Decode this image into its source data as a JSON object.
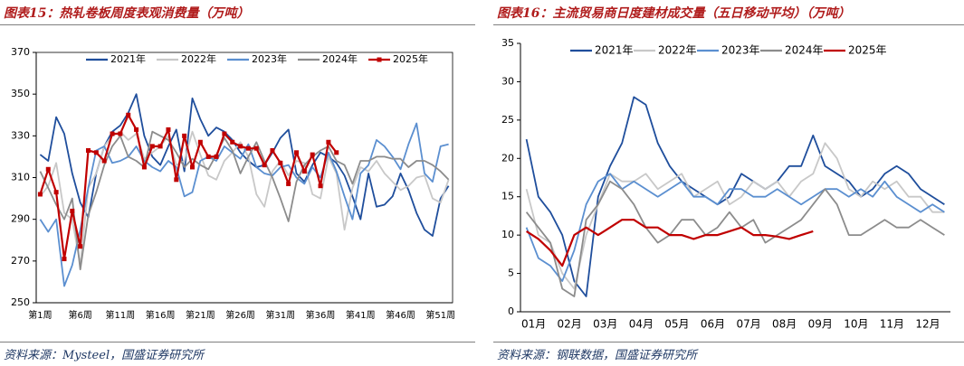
{
  "chart_data": [
    {
      "type": "line",
      "title": "图表15：热轧卷板周度表观消费量（万吨）",
      "source": "资料来源：Mysteel，国盛证券研究所",
      "categories": [
        "第1周",
        null,
        null,
        null,
        null,
        "第6周",
        null,
        null,
        null,
        null,
        "第11周",
        null,
        null,
        null,
        null,
        "第16周",
        null,
        null,
        null,
        null,
        "第21周",
        null,
        null,
        null,
        null,
        "第26周",
        null,
        null,
        null,
        null,
        "第31周",
        null,
        null,
        null,
        null,
        "第36周",
        null,
        null,
        null,
        null,
        "第41周",
        null,
        null,
        null,
        null,
        "第46周",
        null,
        null,
        null,
        null,
        "第51周",
        null
      ],
      "ylim": [
        250,
        370
      ],
      "yticks": [
        250,
        270,
        290,
        310,
        330,
        350,
        370
      ],
      "grid": false,
      "legend": "top",
      "series": [
        {
          "name": "2021年",
          "color": "#1f4e9c",
          "values": [
            321,
            318,
            339,
            331,
            312,
            298,
            291,
            312,
            325,
            332,
            335,
            341,
            350,
            330,
            320,
            316,
            325,
            333,
            313,
            348,
            338,
            330,
            334,
            332,
            328,
            322,
            318,
            315,
            316,
            322,
            329,
            333,
            312,
            308,
            316,
            322,
            320,
            317,
            311,
            301,
            290,
            312,
            296,
            297,
            301,
            312,
            304,
            293,
            285,
            282,
            300,
            306
          ]
        },
        {
          "name": "2022年",
          "color": "#c8c8c8",
          "values": [
            301,
            306,
            317,
            293,
            290,
            268,
            305,
            312,
            325,
            330,
            332,
            328,
            331,
            319,
            322,
            325,
            330,
            316,
            318,
            332,
            321,
            311,
            309,
            318,
            322,
            327,
            320,
            302,
            296,
            313,
            318,
            311,
            318,
            317,
            302,
            300,
            320,
            312,
            285,
            305,
            315,
            313,
            318,
            312,
            308,
            304,
            306,
            310,
            311,
            300,
            298,
            309
          ]
        },
        {
          "name": "2023年",
          "color": "#5b8fd0",
          "values": [
            290,
            284,
            290,
            258,
            268,
            285,
            305,
            323,
            325,
            317,
            318,
            320,
            325,
            318,
            315,
            313,
            318,
            315,
            301,
            303,
            318,
            320,
            318,
            325,
            322,
            319,
            326,
            315,
            312,
            311,
            315,
            316,
            310,
            307,
            315,
            310,
            322,
            313,
            301,
            290,
            312,
            316,
            328,
            325,
            320,
            314,
            326,
            336,
            312,
            308,
            325,
            326
          ]
        },
        {
          "name": "2024年",
          "color": "#8c8c8c",
          "values": [
            313,
            305,
            297,
            290,
            300,
            266,
            292,
            303,
            316,
            325,
            330,
            320,
            318,
            315,
            332,
            330,
            328,
            322,
            315,
            319,
            316,
            314,
            321,
            329,
            323,
            312,
            320,
            327,
            318,
            310,
            300,
            289,
            308,
            316,
            320,
            323,
            325,
            318,
            316,
            307,
            318,
            318,
            320,
            320,
            319,
            319,
            315,
            318,
            318,
            316,
            313,
            309
          ]
        },
        {
          "name": "2025年",
          "color": "#c00000",
          "marker": "square",
          "values": [
            302,
            314,
            303,
            271,
            294,
            277,
            323,
            322,
            318,
            331,
            331,
            340,
            333,
            315,
            325,
            325,
            333,
            309,
            330,
            315,
            327,
            320,
            320,
            331,
            327,
            325,
            324,
            324,
            316,
            323,
            317,
            307,
            322,
            313,
            321,
            306,
            327,
            322,
            null,
            null,
            null,
            null,
            null,
            null,
            null,
            null,
            null,
            null,
            null,
            null,
            null,
            null
          ]
        }
      ]
    },
    {
      "type": "line",
      "title": "图表16：主流贸易商日度建材成交量（五日移动平均）（万吨）",
      "source": "资料来源：钢联数据，国盛证券研究所",
      "categories": [
        "01月",
        null,
        null,
        "02月",
        null,
        null,
        "03月",
        null,
        null,
        "04月",
        null,
        null,
        "05月",
        null,
        null,
        "06月",
        null,
        null,
        "07月",
        null,
        null,
        "08月",
        null,
        null,
        "09月",
        null,
        null,
        "10月",
        null,
        null,
        "11月",
        null,
        null,
        "12月",
        null,
        null
      ],
      "ylim": [
        0,
        35
      ],
      "yticks": [
        0,
        5,
        10,
        15,
        20,
        25,
        30,
        35
      ],
      "grid": false,
      "legend": "top",
      "series": [
        {
          "name": "2021年",
          "color": "#1f4e9c",
          "values": [
            22.5,
            15,
            13,
            10,
            4,
            2,
            15,
            19,
            22,
            28,
            27,
            22,
            19,
            17,
            16,
            15,
            14,
            15,
            18,
            17,
            16,
            17,
            19,
            19,
            23,
            19,
            18,
            17,
            15,
            16,
            18,
            19,
            18,
            16,
            15,
            14
          ]
        },
        {
          "name": "2022年",
          "color": "#c8c8c8",
          "values": [
            16,
            10,
            9,
            5,
            3,
            10,
            14,
            18,
            17,
            17,
            18,
            16,
            17,
            18,
            15,
            16,
            17,
            14,
            15,
            17,
            16,
            17,
            15,
            17,
            18,
            22,
            20,
            16,
            15,
            17,
            16,
            17,
            15,
            15,
            13,
            13
          ]
        },
        {
          "name": "2023年",
          "color": "#5b8fd0",
          "values": [
            11,
            7,
            6,
            4,
            8,
            14,
            17,
            18,
            16,
            17,
            16,
            15,
            16,
            17,
            15,
            15,
            14,
            16,
            16,
            15,
            15,
            16,
            15,
            14,
            15,
            16,
            16,
            15,
            16,
            15,
            17,
            15,
            14,
            13,
            14,
            13
          ]
        },
        {
          "name": "2024年",
          "color": "#8c8c8c",
          "values": [
            13,
            11,
            9,
            3,
            2,
            12,
            14,
            17,
            16,
            14,
            11,
            9,
            10,
            12,
            12,
            10,
            11,
            13,
            11,
            12,
            9,
            10,
            11,
            12,
            14,
            16,
            14,
            10,
            10,
            11,
            12,
            11,
            11,
            12,
            11,
            10
          ]
        },
        {
          "name": "2025年",
          "color": "#c00000",
          "values": [
            10.5,
            9.5,
            8,
            6,
            10,
            11,
            10,
            11,
            12,
            12,
            11,
            11,
            10,
            10,
            9.5,
            10,
            10,
            10.5,
            11,
            10,
            10,
            9.8,
            9.5,
            10,
            10.5,
            null,
            null,
            null,
            null,
            null,
            null,
            null,
            null,
            null,
            null,
            null
          ]
        }
      ]
    }
  ]
}
